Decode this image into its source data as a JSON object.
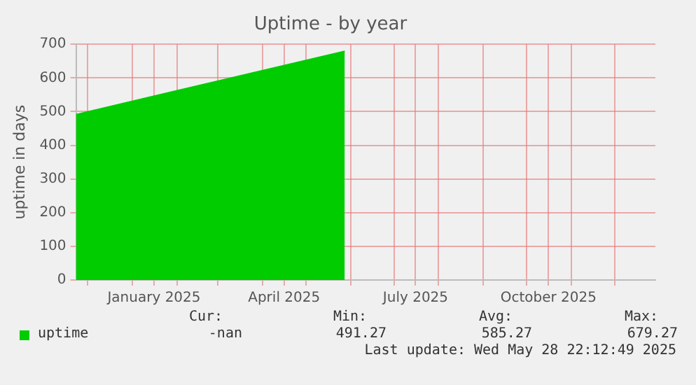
{
  "chart_data": {
    "type": "area",
    "title": "Uptime - by year",
    "ylabel": "uptime in days",
    "x": [
      "2024-11-23",
      "2025-05-28"
    ],
    "series": [
      {
        "name": "uptime",
        "color": "#00cc00",
        "values": [
          491.27,
          679.27
        ]
      }
    ],
    "xlim": [
      "2024-11-23",
      "2025-12-29"
    ],
    "xticks": [
      {
        "value": "2024-12-01",
        "label": null
      },
      {
        "value": "2025-01-01",
        "label": null
      },
      {
        "value": "2025-01-16",
        "label": "January 2025"
      },
      {
        "value": "2025-02-01",
        "label": null
      },
      {
        "value": "2025-03-01",
        "label": null
      },
      {
        "value": "2025-04-01",
        "label": null
      },
      {
        "value": "2025-04-16",
        "label": "April 2025"
      },
      {
        "value": "2025-05-01",
        "label": null
      },
      {
        "value": "2025-06-01",
        "label": null
      },
      {
        "value": "2025-07-01",
        "label": null
      },
      {
        "value": "2025-07-16",
        "label": "July 2025"
      },
      {
        "value": "2025-08-01",
        "label": null
      },
      {
        "value": "2025-09-01",
        "label": null
      },
      {
        "value": "2025-10-01",
        "label": null
      },
      {
        "value": "2025-10-16",
        "label": "October 2025"
      },
      {
        "value": "2025-11-01",
        "label": null
      },
      {
        "value": "2025-12-01",
        "label": null
      }
    ],
    "ylim": [
      0,
      700
    ],
    "yticks": [
      0,
      100,
      200,
      300,
      400,
      500,
      600,
      700
    ],
    "grid": true,
    "legend": "bottom left",
    "annotations": [
      "Cur:",
      "Min:",
      "Avg:",
      "Max:",
      "-nan",
      "491.27",
      "585.27",
      "679.27",
      "Last update: Wed May 28 22:12:49 2025"
    ]
  }
}
